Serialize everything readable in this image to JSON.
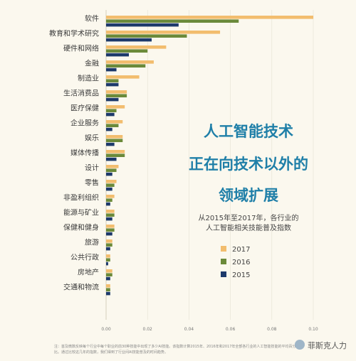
{
  "chart_data": {
    "type": "bar",
    "orientation": "horizontal",
    "title_lines": [
      "人工智能技术",
      "正在向技术以外的",
      "领域扩展"
    ],
    "subtitle_lines": [
      "从2015年至2017年，各行业的",
      "人工智能相关技能普及指数"
    ],
    "categories": [
      "软件",
      "教育和学术研究",
      "硬件和网络",
      "金融",
      "制造业",
      "生活消费品",
      "医疗保健",
      "企业服务",
      "娱乐",
      "媒体传播",
      "设计",
      "零售",
      "非盈利组织",
      "能源与矿业",
      "保健和健身",
      "旅游",
      "公共行政",
      "房地产",
      "交通和物流"
    ],
    "series": [
      {
        "name": "2017",
        "color": "#f2bd6e",
        "values": [
          0.1,
          0.055,
          0.029,
          0.023,
          0.016,
          0.01,
          0.009,
          0.008,
          0.008,
          0.009,
          0.006,
          0.005,
          0.004,
          0.004,
          0.004,
          0.003,
          0.002,
          0.003,
          0.002
        ]
      },
      {
        "name": "2016",
        "color": "#6b8a3a",
        "values": [
          0.064,
          0.039,
          0.02,
          0.019,
          0.006,
          0.01,
          0.005,
          0.006,
          0.008,
          0.009,
          0.005,
          0.004,
          0.003,
          0.004,
          0.004,
          0.003,
          0.002,
          0.003,
          0.002
        ]
      },
      {
        "name": "2015",
        "color": "#1d3a6b",
        "values": [
          0.035,
          0.022,
          0.011,
          0.005,
          0.006,
          0.006,
          0.004,
          0.003,
          0.004,
          0.005,
          0.003,
          0.003,
          0.002,
          0.003,
          0.003,
          0.002,
          0.001,
          0.002,
          0.002
        ]
      }
    ],
    "xlim": [
      0,
      0.1
    ],
    "xticks": [
      "0.00",
      "0.02",
      "0.04",
      "0.06",
      "0.08",
      "0.10"
    ],
    "legend_position": "right"
  },
  "note": "注：首及微数反映每个行业中每个职业的前30种技能中出现了多少AI技能。该指数计算2015年、2016年和2017年全部各行业的人工智能技能的平均百分比。通过比较这几年的指数，我们得到了行业间AI技能普及的时间趋势。",
  "watermark": "菲斯克人力"
}
